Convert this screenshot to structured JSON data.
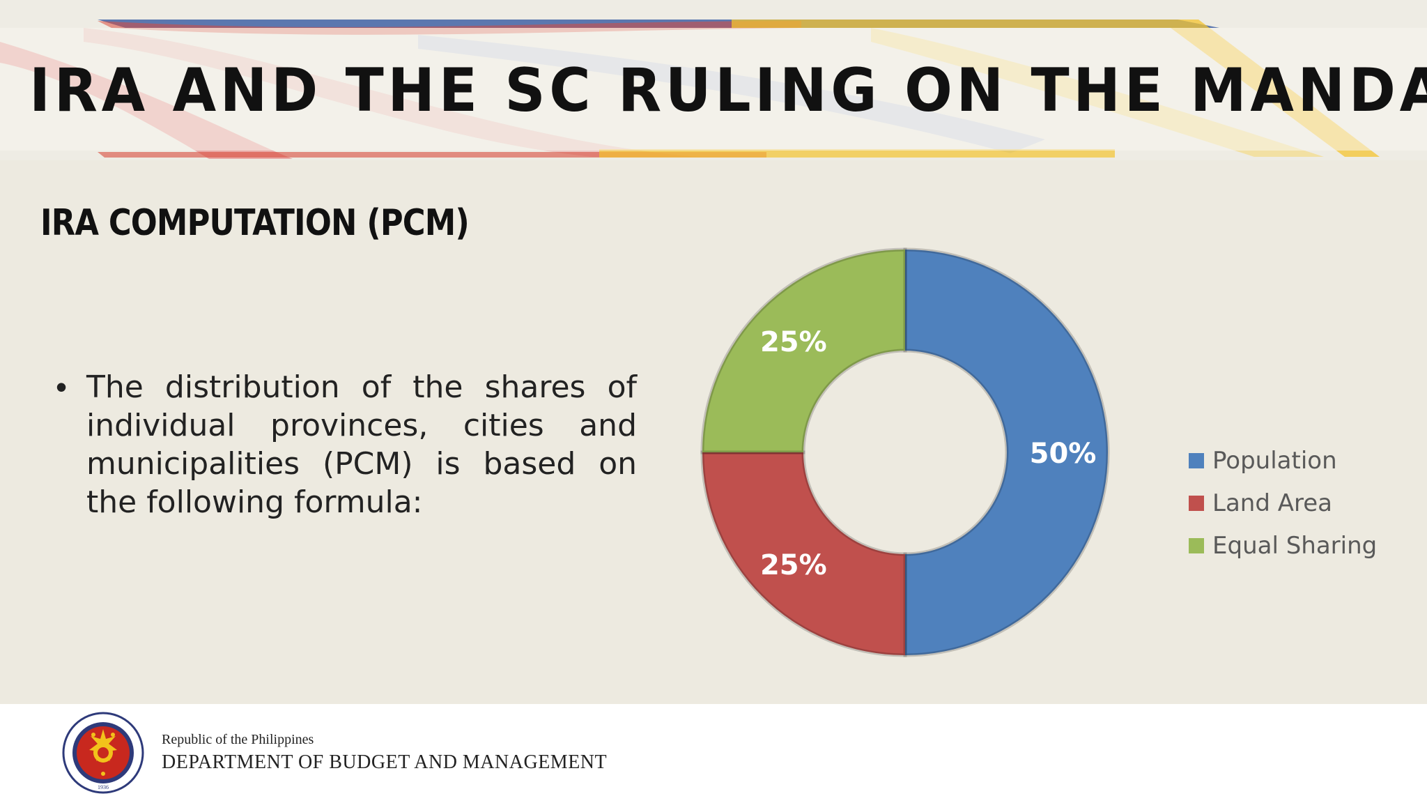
{
  "slide": {
    "title": "IRA AND THE SC RULING ON THE MANDANAS CASE",
    "subtitle": "IRA COMPUTATION (PCM)",
    "bullet": "The distribution of the shares of individual provinces, cities and municipalities (PCM) is based on the following formula:"
  },
  "footer": {
    "line1": "Republic of the Philippines",
    "line2": "DEPARTMENT OF BUDGET AND MANAGEMENT",
    "seal_text": "DEPARTMENT OF BUDGET AND MANAGEMENT",
    "seal_year": "1936"
  },
  "chart_data": {
    "type": "pie",
    "variant": "doughnut",
    "categories": [
      "Population",
      "Land Area",
      "Equal Sharing"
    ],
    "values": [
      50,
      25,
      25
    ],
    "labels": [
      "50%",
      "25%",
      "25%"
    ],
    "colors": [
      "#4f81bd",
      "#c0504d",
      "#9bbb59"
    ],
    "legend": "right"
  }
}
